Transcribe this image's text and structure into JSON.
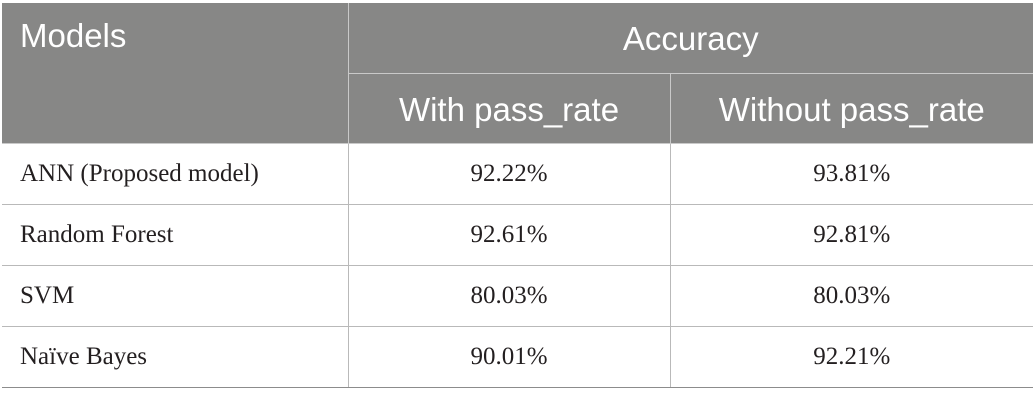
{
  "table": {
    "headers": {
      "models": "Models",
      "accuracy": "Accuracy",
      "with_pass_rate": "With pass_rate",
      "without_pass_rate": "Without pass_rate"
    },
    "rows": [
      {
        "model": "ANN (Proposed model)",
        "with": "92.22%",
        "without": "93.81%"
      },
      {
        "model": "Random Forest",
        "with": "92.61%",
        "without": "92.81%"
      },
      {
        "model": "SVM",
        "with": "80.03%",
        "without": "80.03%"
      },
      {
        "model": "Naïve Bayes",
        "with": "90.01%",
        "without": "92.21%"
      }
    ],
    "colors": {
      "header_background": "#878786",
      "header_text": "#ffffff",
      "body_text": "#231f20",
      "grid_line": "#b9b9b9"
    }
  }
}
